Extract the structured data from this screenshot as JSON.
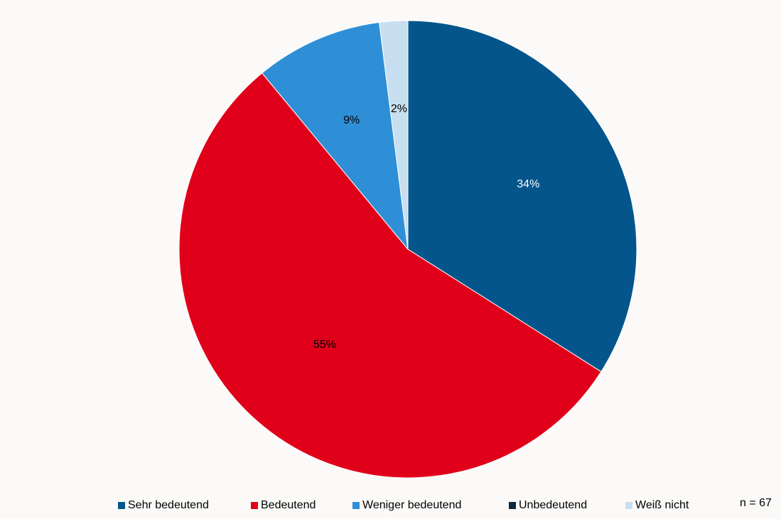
{
  "chart_data": {
    "type": "pie",
    "categories": [
      "Sehr bedeutend",
      "Bedeutend",
      "Weniger bedeutend",
      "Unbedeutend",
      "Weiß nicht"
    ],
    "values": [
      34,
      55,
      9,
      0,
      2
    ],
    "labels": [
      "34%",
      "55%",
      "9%",
      "",
      "2%"
    ],
    "colors": [
      "#03558c",
      "#e1001a",
      "#2f8fd6",
      "#0d2942",
      "#c7dff0"
    ],
    "label_colors": [
      "#ffffff",
      "#000000",
      "#000000",
      "#000000",
      "#000000"
    ],
    "start_angle_deg": 0,
    "direction": "clockwise",
    "legend_position": "bottom",
    "note": "n = 67"
  }
}
